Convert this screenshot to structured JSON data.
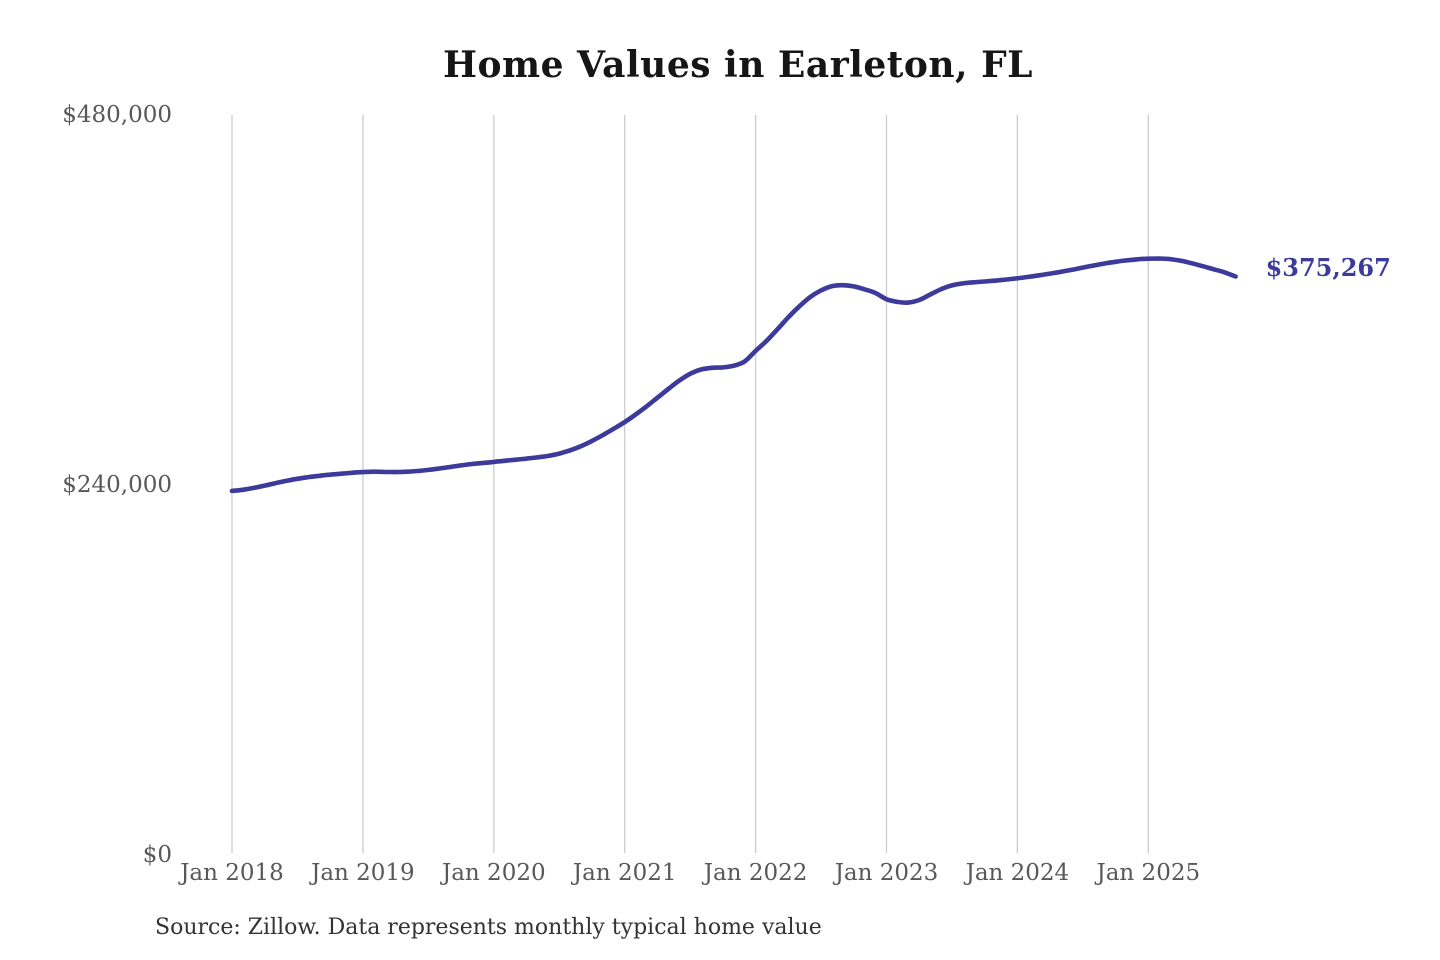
{
  "page": {
    "background": "#ffffff"
  },
  "chart_data": {
    "type": "line",
    "title": "Home Values in Earleton, FL",
    "source_note": "Source: Zillow. Data represents monthly typical home value",
    "xlabel": "",
    "ylabel": "",
    "ylim": [
      0,
      480000
    ],
    "grid": "vertical-only",
    "grid_color": "#cccccc",
    "axis_label_color": "#585858",
    "title_color": "#161616",
    "source_color": "#333333",
    "y_ticks": [
      {
        "value": 0,
        "label": "$0"
      },
      {
        "value": 240000,
        "label": "$240,000"
      },
      {
        "value": 480000,
        "label": "$480,000"
      }
    ],
    "x_ticks": [
      {
        "month": "2018-01",
        "label": "Jan 2018"
      },
      {
        "month": "2019-01",
        "label": "Jan 2019"
      },
      {
        "month": "2020-01",
        "label": "Jan 2020"
      },
      {
        "month": "2021-01",
        "label": "Jan 2021"
      },
      {
        "month": "2022-01",
        "label": "Jan 2022"
      },
      {
        "month": "2023-01",
        "label": "Jan 2023"
      },
      {
        "month": "2024-01",
        "label": "Jan 2024"
      },
      {
        "month": "2025-01",
        "label": "Jan 2025"
      }
    ],
    "series": [
      {
        "name": "Monthly typical home value",
        "color": "#3c3a9a",
        "end_label": "$375,267",
        "end_value": 375267,
        "x_start": "2018-01",
        "x_end": "2025-09",
        "x_freq": "monthly",
        "months": [
          "2018-01",
          "2018-02",
          "2018-03",
          "2018-04",
          "2018-05",
          "2018-06",
          "2018-07",
          "2018-08",
          "2018-09",
          "2018-10",
          "2018-11",
          "2018-12",
          "2019-01",
          "2019-02",
          "2019-03",
          "2019-04",
          "2019-05",
          "2019-06",
          "2019-07",
          "2019-08",
          "2019-09",
          "2019-10",
          "2019-11",
          "2019-12",
          "2020-01",
          "2020-02",
          "2020-03",
          "2020-04",
          "2020-05",
          "2020-06",
          "2020-07",
          "2020-08",
          "2020-09",
          "2020-10",
          "2020-11",
          "2020-12",
          "2021-01",
          "2021-02",
          "2021-03",
          "2021-04",
          "2021-05",
          "2021-06",
          "2021-07",
          "2021-08",
          "2021-09",
          "2021-10",
          "2021-11",
          "2021-12",
          "2022-01",
          "2022-02",
          "2022-03",
          "2022-04",
          "2022-05",
          "2022-06",
          "2022-07",
          "2022-08",
          "2022-09",
          "2022-10",
          "2022-11",
          "2022-12",
          "2023-01",
          "2023-02",
          "2023-03",
          "2023-04",
          "2023-05",
          "2023-06",
          "2023-07",
          "2023-08",
          "2023-09",
          "2023-10",
          "2023-11",
          "2023-12",
          "2024-01",
          "2024-02",
          "2024-03",
          "2024-04",
          "2024-05",
          "2024-06",
          "2024-07",
          "2024-08",
          "2024-09",
          "2024-10",
          "2024-11",
          "2024-12",
          "2025-01",
          "2025-02",
          "2025-03",
          "2025-04",
          "2025-05",
          "2025-06",
          "2025-07",
          "2025-08",
          "2025-09"
        ],
        "values": [
          236200,
          236900,
          238100,
          239600,
          241200,
          242700,
          244000,
          245100,
          246000,
          246700,
          247300,
          247900,
          248400,
          248600,
          248500,
          248400,
          248600,
          249100,
          249800,
          250700,
          251700,
          252700,
          253600,
          254300,
          255000,
          255700,
          256400,
          257100,
          257900,
          258900,
          260400,
          262500,
          265200,
          268600,
          272400,
          276500,
          280800,
          285700,
          291000,
          296600,
          302300,
          307700,
          312100,
          314900,
          316000,
          316300,
          317400,
          320200,
          327000,
          333500,
          341000,
          348800,
          355800,
          361900,
          366200,
          369000,
          369600,
          368800,
          366900,
          364500,
          360500,
          358800,
          358300,
          360000,
          363500,
          367000,
          369500,
          370800,
          371500,
          372000,
          372600,
          373300,
          374100,
          375000,
          376000,
          377100,
          378300,
          379600,
          381000,
          382400,
          383700,
          384800,
          385700,
          386400,
          386800,
          386900,
          386500,
          385400,
          383800,
          381900,
          379900,
          377900,
          375267
        ]
      }
    ]
  }
}
